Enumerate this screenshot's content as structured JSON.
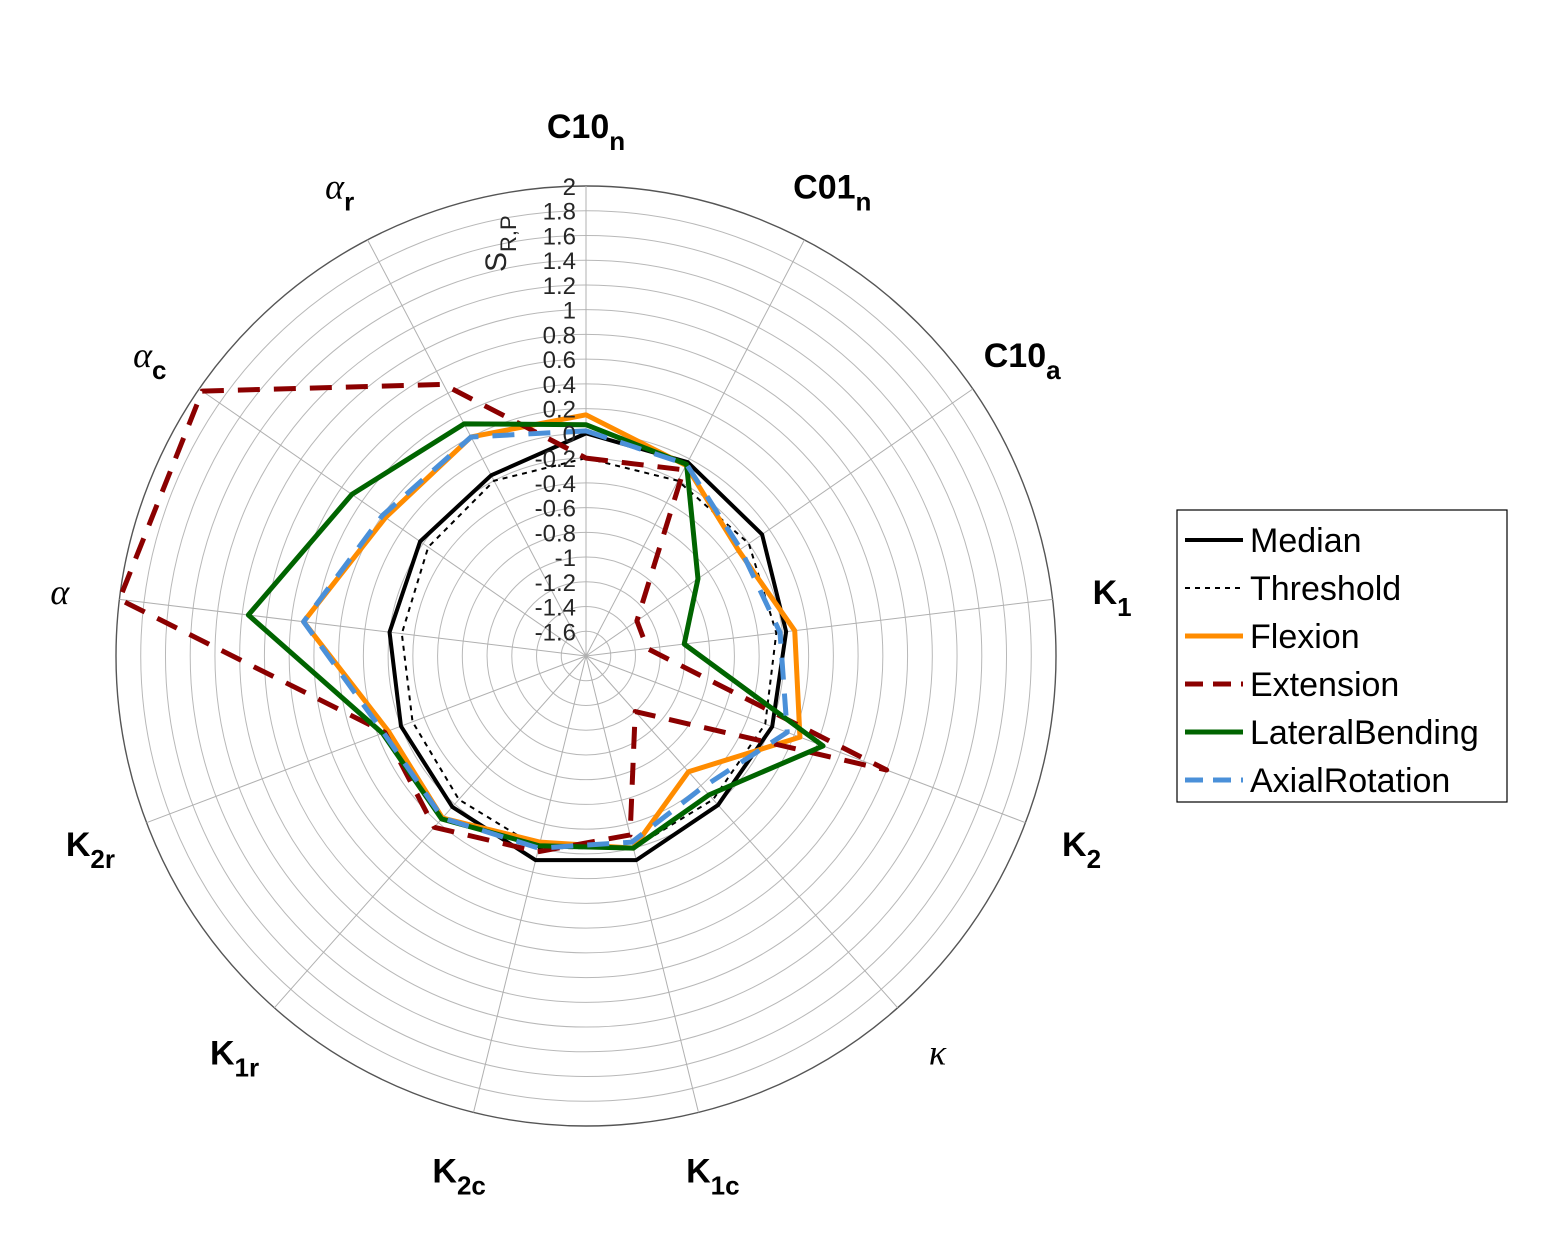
{
  "chart_data": {
    "type": "radar",
    "rlabel": "S",
    "rlabel_sub": "R,P",
    "r_ticks": [
      "2",
      "1.8",
      "1.6",
      "1.4",
      "1.2",
      "1",
      "0.8",
      "0.6",
      "0.4",
      "0.2",
      "0",
      "-0.2",
      "-0.4",
      "-0.6",
      "-0.8",
      "-1",
      "-1.2",
      "-1.4",
      "-1.6"
    ],
    "rlim": [
      -1.8,
      2
    ],
    "categories": [
      {
        "main": "C10",
        "sub": "n",
        "greek": false
      },
      {
        "main": "C01",
        "sub": "n",
        "greek": false
      },
      {
        "main": "C10",
        "sub": "a",
        "greek": false
      },
      {
        "main": "K",
        "sub": "1",
        "greek": false
      },
      {
        "main": "K",
        "sub": "2",
        "greek": false
      },
      {
        "main": "κ",
        "sub": "",
        "greek": true
      },
      {
        "main": "K",
        "sub": "1c",
        "greek": false
      },
      {
        "main": "K",
        "sub": "2c",
        "greek": false
      },
      {
        "main": "K",
        "sub": "1r",
        "greek": false
      },
      {
        "main": "K",
        "sub": "2r",
        "greek": false
      },
      {
        "main": "α",
        "sub": "",
        "greek": true
      },
      {
        "main": "α",
        "sub": "c",
        "greek": true
      },
      {
        "main": "α",
        "sub": "r",
        "greek": true
      }
    ],
    "series": [
      {
        "name": "Median",
        "color": "#000000",
        "dash": "solid",
        "width": 4,
        "values": [
          0.0,
          -0.03,
          -0.07,
          -0.17,
          -0.19,
          -0.19,
          -0.1,
          -0.1,
          -0.17,
          -0.2,
          -0.2,
          -0.17,
          -0.15
        ]
      },
      {
        "name": "Threshold",
        "color": "#000000",
        "dash": "dotted",
        "width": 2,
        "values": [
          -0.2,
          -0.2,
          -0.2,
          -0.25,
          -0.25,
          -0.25,
          -0.2,
          -0.2,
          -0.25,
          -0.3,
          -0.3,
          -0.25,
          -0.2
        ]
      },
      {
        "name": "Flexion",
        "color": "#FF8C00",
        "dash": "solid",
        "width": 5,
        "values": [
          0.15,
          -0.06,
          -0.3,
          -0.1,
          0.05,
          -0.55,
          -0.2,
          -0.25,
          -0.05,
          -0.09,
          0.5,
          0.17,
          0.2
        ]
      },
      {
        "name": "Extension",
        "color": "#8B0000",
        "dash": "dashed",
        "width": 5,
        "values": [
          -0.2,
          -0.1,
          -1.3,
          -1.3,
          0.8,
          -1.2,
          -0.31,
          -0.17,
          0.05,
          -0.06,
          2.0,
          1.97,
          0.68
        ]
      },
      {
        "name": "LateralBending",
        "color": "#006400",
        "dash": "solid",
        "width": 5,
        "values": [
          0.07,
          -0.05,
          -0.7,
          -1.0,
          0.25,
          -0.3,
          -0.2,
          -0.22,
          -0.04,
          -0.04,
          0.95,
          0.5,
          0.32
        ]
      },
      {
        "name": "AxialRotation",
        "color": "#4A90D9",
        "dash": "dashed",
        "width": 5,
        "values": [
          0.02,
          -0.05,
          -0.28,
          -0.22,
          -0.06,
          -0.38,
          -0.25,
          -0.2,
          -0.05,
          -0.05,
          0.5,
          0.2,
          0.2
        ]
      }
    ]
  }
}
